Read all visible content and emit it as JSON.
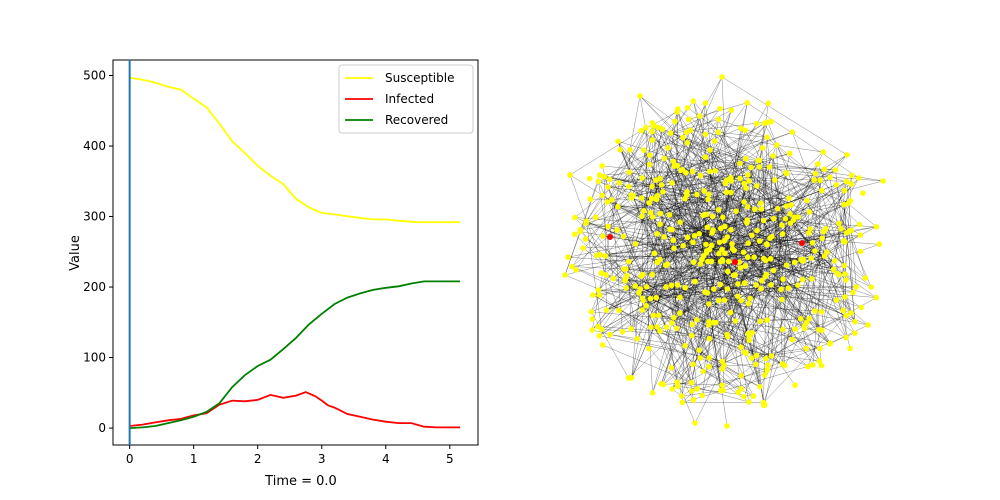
{
  "chart_data": [
    {
      "type": "line",
      "title": "",
      "xlabel": "Time = 0.0",
      "ylabel": "Value",
      "xlim": [
        -0.26,
        5.44
      ],
      "ylim": [
        -24,
        522
      ],
      "xticks": [
        0,
        1,
        2,
        3,
        4,
        5
      ],
      "yticks": [
        0,
        100,
        200,
        300,
        400,
        500
      ],
      "grid": false,
      "legend_position": "top-right",
      "vline": {
        "x": 0,
        "color": "#1f77b4"
      },
      "series": [
        {
          "name": "Susceptible",
          "color": "#ffff00",
          "x": [
            0,
            0.2,
            0.4,
            0.6,
            0.8,
            1.0,
            1.2,
            1.4,
            1.6,
            1.8,
            2.0,
            2.2,
            2.4,
            2.6,
            2.8,
            3.0,
            3.2,
            3.5,
            3.8,
            4.0,
            4.2,
            4.5,
            4.8,
            5.0,
            5.16
          ],
          "y": [
            497,
            494,
            490,
            484,
            480,
            467,
            455,
            432,
            407,
            390,
            372,
            358,
            346,
            325,
            313,
            305,
            303,
            299,
            296,
            296,
            294,
            292,
            292,
            292,
            292
          ]
        },
        {
          "name": "Infected",
          "color": "#ff0000",
          "x": [
            0,
            0.2,
            0.4,
            0.6,
            0.8,
            1.0,
            1.2,
            1.4,
            1.6,
            1.8,
            2.0,
            2.2,
            2.4,
            2.6,
            2.75,
            2.9,
            3.0,
            3.1,
            3.2,
            3.4,
            3.6,
            3.8,
            4.0,
            4.2,
            4.4,
            4.6,
            4.8,
            5.0,
            5.16
          ],
          "y": [
            3,
            5,
            8,
            11,
            13,
            18,
            21,
            33,
            39,
            38,
            40,
            47,
            43,
            46,
            51,
            45,
            39,
            32,
            29,
            20,
            16,
            12,
            9,
            7,
            7,
            2,
            1,
            1,
            1
          ]
        },
        {
          "name": "Recovered",
          "color": "#008000",
          "x": [
            0,
            0.2,
            0.4,
            0.6,
            0.8,
            1.0,
            1.2,
            1.4,
            1.6,
            1.8,
            2.0,
            2.2,
            2.4,
            2.6,
            2.8,
            3.0,
            3.2,
            3.4,
            3.6,
            3.8,
            4.0,
            4.2,
            4.4,
            4.6,
            4.8,
            5.0,
            5.16
          ],
          "y": [
            0,
            1,
            3,
            7,
            11,
            16,
            23,
            35,
            58,
            75,
            88,
            97,
            112,
            128,
            147,
            162,
            176,
            185,
            191,
            196,
            199,
            201,
            205,
            208,
            208,
            208,
            208
          ]
        }
      ]
    },
    {
      "type": "network",
      "title": "",
      "node_count": 500,
      "node_color": "#ffff00",
      "infected_color": "#ff0000",
      "infected_nodes": 3,
      "edge_color": "#000000"
    }
  ]
}
